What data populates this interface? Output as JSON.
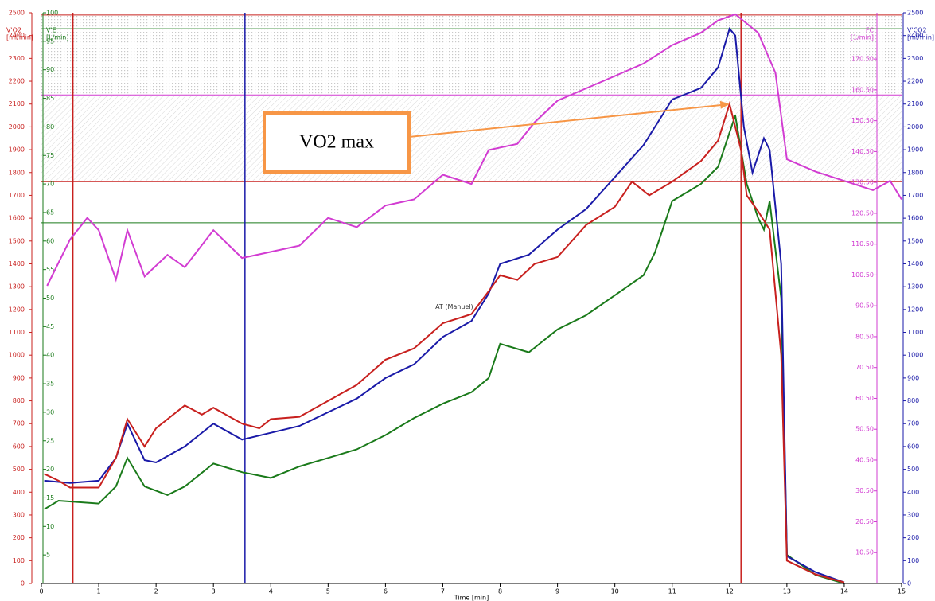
{
  "chart_data": {
    "type": "line",
    "xlabel": "Time [min]",
    "xlim": [
      0,
      15
    ],
    "xticks": [
      0,
      1,
      2,
      3,
      4,
      5,
      6,
      7,
      8,
      9,
      10,
      11,
      12,
      13,
      14,
      15
    ],
    "ylabel": [
      "V'O2",
      "[ml/min]"
    ],
    "ycolor": "#c8201e",
    "ylim": [
      0,
      2500
    ],
    "yticks": [
      0,
      100,
      200,
      300,
      400,
      500,
      600,
      700,
      800,
      900,
      1000,
      1100,
      1200,
      1300,
      1400,
      1500,
      1600,
      1700,
      1800,
      1900,
      2000,
      2100,
      2200,
      2300,
      2400,
      2500
    ],
    "y2label": [
      "V'CO2",
      "[ml/min]"
    ],
    "y2color": "#1a1aa8",
    "y2lim": [
      0,
      2500
    ],
    "y2ticks": [
      0,
      100,
      200,
      300,
      400,
      500,
      600,
      700,
      800,
      900,
      1000,
      1100,
      1200,
      1300,
      1400,
      1500,
      1600,
      1700,
      1800,
      1900,
      2000,
      2100,
      2200,
      2300,
      2400,
      2500
    ],
    "y3label": [
      "V'E",
      "[L/min]"
    ],
    "y3color": "#1a7a1a",
    "y3lim": [
      0,
      100
    ],
    "y3ticks": [
      5,
      10,
      15,
      20,
      25,
      30,
      35,
      40,
      45,
      50,
      55,
      60,
      65,
      70,
      75,
      80,
      85,
      90,
      95,
      100
    ],
    "y4label": [
      "FC",
      "[1/min]"
    ],
    "y4color": "#d23cd2",
    "y4lim": [
      0.5,
      185.5
    ],
    "y4ticks": [
      {
        "value": 10.5,
        "label": "10.50"
      },
      {
        "value": 20.5,
        "label": "20.50"
      },
      {
        "value": 30.5,
        "label": "30.50"
      },
      {
        "value": 40.5,
        "label": "40.50"
      },
      {
        "value": 50.5,
        "label": "50.50"
      },
      {
        "value": 60.5,
        "label": "60.50"
      },
      {
        "value": 70.5,
        "label": "70.50"
      },
      {
        "value": 80.5,
        "label": "80.50"
      },
      {
        "value": 90.5,
        "label": "90.50"
      },
      {
        "value": 100.5,
        "label": "100.50"
      },
      {
        "value": 110.5,
        "label": "110.50"
      },
      {
        "value": 120.5,
        "label": "120.50"
      },
      {
        "value": 130.5,
        "label": "130.50"
      },
      {
        "value": 140.5,
        "label": "140.50"
      },
      {
        "value": 150.5,
        "label": "150.50"
      },
      {
        "value": 160.5,
        "label": "160.50"
      },
      {
        "value": 170.5,
        "label": "170.50"
      }
    ],
    "hlines": [
      {
        "value": 2490,
        "color": "#c8201e"
      },
      {
        "value": 2430,
        "color": "#1a7a1a"
      },
      {
        "value": 2140,
        "color": "#d23cd2"
      },
      {
        "value": 1760,
        "color": "#c8201e"
      },
      {
        "value": 1580,
        "color": "#1a7a1a"
      }
    ],
    "vlines": [
      {
        "value": 0.55,
        "color": "#c8201e"
      },
      {
        "value": 3.55,
        "color": "#1a1aa8"
      },
      {
        "value": 12.2,
        "color": "#c8201e"
      }
    ],
    "series": [
      {
        "axis": "y4",
        "color": "#d23cd2",
        "x": [
          0.1,
          0.5,
          0.8,
          1.0,
          1.3,
          1.5,
          1.8,
          2.2,
          2.5,
          3.0,
          3.5,
          4.0,
          4.5,
          5.0,
          5.5,
          6.0,
          6.5,
          7.0,
          7.5,
          7.8,
          8.3,
          8.6,
          9.0,
          9.5,
          10.0,
          10.5,
          11.0,
          11.5,
          11.8,
          12.1,
          12.5,
          12.8,
          13.0,
          13.5,
          14.0,
          14.5,
          14.8,
          15.0
        ],
        "values": [
          97,
          112,
          119,
          115,
          99,
          115,
          100,
          107,
          103,
          115,
          106,
          108,
          110,
          119,
          116,
          123,
          125,
          133,
          130,
          141,
          143,
          150,
          157,
          161,
          165,
          169,
          175,
          179,
          183,
          185,
          179,
          166,
          138,
          134,
          131,
          128,
          131,
          125
        ]
      },
      {
        "axis": "y3",
        "color": "#1a7a1a",
        "x": [
          0.05,
          0.3,
          1.0,
          1.3,
          1.5,
          1.8,
          2.2,
          2.5,
          3.0,
          3.5,
          4.0,
          4.5,
          5.0,
          5.5,
          6.0,
          6.5,
          7.0,
          7.5,
          7.8,
          8.0,
          8.5,
          9.0,
          9.5,
          10.0,
          10.5,
          10.7,
          11.0,
          11.5,
          11.8,
          12.1,
          12.3,
          12.5,
          12.6,
          12.7,
          12.9,
          13.0,
          13.5,
          14.0
        ],
        "values": [
          13,
          14.5,
          14,
          17,
          22,
          17,
          15.5,
          17,
          21,
          19.5,
          18.5,
          20.5,
          22,
          23.5,
          26,
          29,
          31.5,
          33.5,
          36,
          42,
          40.5,
          44.5,
          47,
          50.5,
          54,
          58,
          67,
          70,
          73,
          82,
          70,
          64,
          62,
          67,
          50,
          5,
          1.5,
          0
        ]
      },
      {
        "axis": "y2",
        "color": "#1a1aa8",
        "x": [
          0.05,
          0.5,
          1.0,
          1.3,
          1.5,
          1.8,
          2.0,
          2.5,
          3.0,
          3.5,
          4.0,
          4.5,
          5.0,
          5.5,
          6.0,
          6.5,
          7.0,
          7.5,
          7.8,
          8.0,
          8.5,
          9.0,
          9.5,
          10.0,
          10.5,
          11.0,
          11.5,
          11.8,
          12.0,
          12.1,
          12.25,
          12.4,
          12.6,
          12.7,
          12.9,
          13.0,
          13.5,
          14.0
        ],
        "values": [
          450,
          440,
          450,
          550,
          700,
          540,
          530,
          600,
          700,
          630,
          660,
          690,
          750,
          810,
          900,
          960,
          1080,
          1150,
          1270,
          1400,
          1440,
          1550,
          1640,
          1780,
          1920,
          2120,
          2170,
          2260,
          2430,
          2400,
          2000,
          1800,
          1950,
          1900,
          1400,
          120,
          50,
          5
        ]
      },
      {
        "axis": "y",
        "color": "#c8201e",
        "x": [
          0.05,
          0.3,
          0.5,
          1.0,
          1.3,
          1.5,
          1.8,
          2.0,
          2.5,
          2.8,
          3.0,
          3.5,
          3.8,
          4.0,
          4.5,
          5.0,
          5.5,
          6.0,
          6.5,
          7.0,
          7.5,
          7.8,
          8.0,
          8.3,
          8.6,
          9.0,
          9.5,
          10.0,
          10.3,
          10.6,
          11.0,
          11.5,
          11.8,
          12.0,
          12.2,
          12.3,
          12.5,
          12.7,
          12.9,
          13.0,
          13.5,
          14.0
        ],
        "values": [
          480,
          450,
          420,
          420,
          550,
          720,
          600,
          680,
          780,
          740,
          770,
          700,
          680,
          720,
          730,
          800,
          870,
          980,
          1030,
          1140,
          1180,
          1280,
          1350,
          1330,
          1400,
          1430,
          1570,
          1650,
          1760,
          1700,
          1760,
          1850,
          1940,
          2100,
          1900,
          1700,
          1630,
          1550,
          1000,
          100,
          40,
          5
        ]
      }
    ],
    "annotations": [
      {
        "text": "VO2 max",
        "x": 12.0,
        "y": 2100
      },
      {
        "text": "AT (Manuel)",
        "x": 7.2,
        "y": 1190
      }
    ]
  }
}
